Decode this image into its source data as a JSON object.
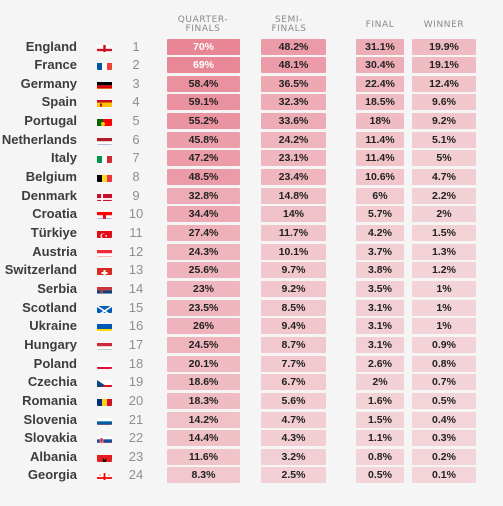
{
  "chart_data": {
    "type": "table",
    "columns": [
      "QUARTER-\nFINALS",
      "SEMI-\nFINALS",
      "FINAL",
      "WINNER"
    ],
    "rows": [
      {
        "team": "England",
        "rank": "1",
        "flag": "england",
        "values": [
          "70%",
          "48.2%",
          "31.1%",
          "19.9%"
        ]
      },
      {
        "team": "France",
        "rank": "2",
        "flag": "france",
        "values": [
          "69%",
          "48.1%",
          "30.4%",
          "19.1%"
        ]
      },
      {
        "team": "Germany",
        "rank": "3",
        "flag": "germany",
        "values": [
          "58.4%",
          "36.5%",
          "22.4%",
          "12.4%"
        ]
      },
      {
        "team": "Spain",
        "rank": "4",
        "flag": "spain",
        "values": [
          "59.1%",
          "32.3%",
          "18.5%",
          "9.6%"
        ]
      },
      {
        "team": "Portugal",
        "rank": "5",
        "flag": "portugal",
        "values": [
          "55.2%",
          "33.6%",
          "18%",
          "9.2%"
        ]
      },
      {
        "team": "Netherlands",
        "rank": "6",
        "flag": "netherlands",
        "values": [
          "45.8%",
          "24.2%",
          "11.4%",
          "5.1%"
        ]
      },
      {
        "team": "Italy",
        "rank": "7",
        "flag": "italy",
        "values": [
          "47.2%",
          "23.1%",
          "11.4%",
          "5%"
        ]
      },
      {
        "team": "Belgium",
        "rank": "8",
        "flag": "belgium",
        "values": [
          "48.5%",
          "23.4%",
          "10.6%",
          "4.7%"
        ]
      },
      {
        "team": "Denmark",
        "rank": "9",
        "flag": "denmark",
        "values": [
          "32.8%",
          "14.8%",
          "6%",
          "2.2%"
        ]
      },
      {
        "team": "Croatia",
        "rank": "10",
        "flag": "croatia",
        "values": [
          "34.4%",
          "14%",
          "5.7%",
          "2%"
        ]
      },
      {
        "team": "Türkiye",
        "rank": "11",
        "flag": "turkiye",
        "values": [
          "27.4%",
          "11.7%",
          "4.2%",
          "1.5%"
        ]
      },
      {
        "team": "Austria",
        "rank": "12",
        "flag": "austria",
        "values": [
          "24.3%",
          "10.1%",
          "3.7%",
          "1.3%"
        ]
      },
      {
        "team": "Switzerland",
        "rank": "13",
        "flag": "switzerland",
        "values": [
          "25.6%",
          "9.7%",
          "3.8%",
          "1.2%"
        ]
      },
      {
        "team": "Serbia",
        "rank": "14",
        "flag": "serbia",
        "values": [
          "23%",
          "9.2%",
          "3.5%",
          "1%"
        ]
      },
      {
        "team": "Scotland",
        "rank": "15",
        "flag": "scotland",
        "values": [
          "23.5%",
          "8.5%",
          "3.1%",
          "1%"
        ]
      },
      {
        "team": "Ukraine",
        "rank": "16",
        "flag": "ukraine",
        "values": [
          "26%",
          "9.4%",
          "3.1%",
          "1%"
        ]
      },
      {
        "team": "Hungary",
        "rank": "17",
        "flag": "hungary",
        "values": [
          "24.5%",
          "8.7%",
          "3.1%",
          "0.9%"
        ]
      },
      {
        "team": "Poland",
        "rank": "18",
        "flag": "poland",
        "values": [
          "20.1%",
          "7.7%",
          "2.6%",
          "0.8%"
        ]
      },
      {
        "team": "Czechia",
        "rank": "19",
        "flag": "czechia",
        "values": [
          "18.6%",
          "6.7%",
          "2%",
          "0.7%"
        ]
      },
      {
        "team": "Romania",
        "rank": "20",
        "flag": "romania",
        "values": [
          "18.3%",
          "5.6%",
          "1.6%",
          "0.5%"
        ]
      },
      {
        "team": "Slovenia",
        "rank": "21",
        "flag": "slovenia",
        "values": [
          "14.2%",
          "4.7%",
          "1.5%",
          "0.4%"
        ]
      },
      {
        "team": "Slovakia",
        "rank": "22",
        "flag": "slovakia",
        "values": [
          "14.4%",
          "4.3%",
          "1.1%",
          "0.3%"
        ]
      },
      {
        "team": "Albania",
        "rank": "23",
        "flag": "albania",
        "values": [
          "11.6%",
          "3.2%",
          "0.8%",
          "0.2%"
        ]
      },
      {
        "team": "Georgia",
        "rank": "24",
        "flag": "georgia",
        "values": [
          "8.3%",
          "2.5%",
          "0.5%",
          "0.1%"
        ]
      }
    ]
  }
}
